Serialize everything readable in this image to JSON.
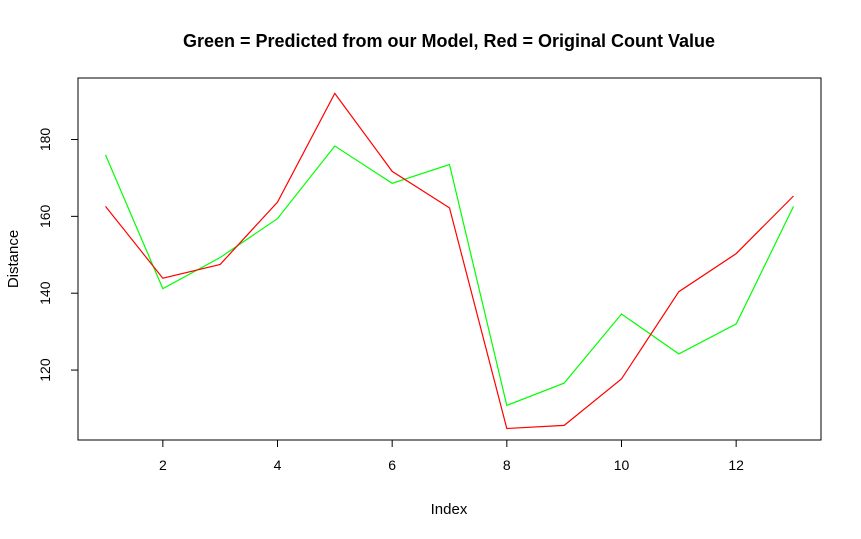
{
  "chart_data": {
    "type": "line",
    "title": "Green = Predicted from our Model, Red = Original Count Value",
    "xlabel": "Index",
    "ylabel": "Distance",
    "x": [
      1,
      2,
      3,
      4,
      5,
      6,
      7,
      8,
      9,
      10,
      11,
      12,
      13
    ],
    "xlim": [
      0.52,
      13.48
    ],
    "ylim": [
      101.8,
      196.0
    ],
    "xticks": [
      2,
      4,
      6,
      8,
      10,
      12
    ],
    "yticks": [
      120,
      140,
      160,
      180
    ],
    "grid": false,
    "series": [
      {
        "color": "#00ff00",
        "values": [
          176.0,
          141.2,
          149.3,
          159.4,
          178.3,
          168.6,
          173.5,
          110.8,
          116.6,
          134.6,
          124.2,
          132.0,
          162.6
        ]
      },
      {
        "color": "#ff0000",
        "values": [
          162.6,
          143.9,
          147.5,
          163.7,
          192.0,
          171.7,
          162.2,
          104.8,
          105.6,
          117.7,
          140.4,
          150.3,
          165.3
        ]
      }
    ]
  }
}
